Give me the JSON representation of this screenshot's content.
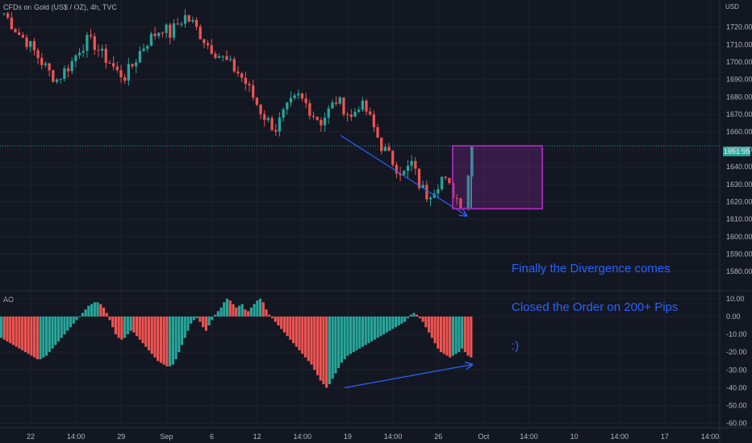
{
  "header": {
    "title": "CFDs on Gold (US$ / OZ), 4h, TVC",
    "currency": "USD"
  },
  "indicator": {
    "label": "AO"
  },
  "annotation": {
    "lines": [
      "Finally the Divergence comes",
      "Closed the Order on 200+ Pips",
      ":)"
    ]
  },
  "current_price": "1651.95",
  "colors": {
    "up": "#26a69a",
    "down": "#ef5350",
    "arrow": "#2962ff",
    "box": "#9c27b0",
    "grid": "#1e222d"
  },
  "chart_data": [
    {
      "type": "candlestick",
      "title": "CFDs on Gold (US$ / OZ), 4h, TVC",
      "ylabel": "USD",
      "ylim": [
        1575,
        1730
      ],
      "y_ticks": [
        "1720.00",
        "1710.00",
        "1700.00",
        "1690.00",
        "1680.00",
        "1670.00",
        "1660.00",
        "1650.00",
        "1640.00",
        "1630.00",
        "1620.00",
        "1610.00",
        "1600.00",
        "1590.00",
        "1580.00"
      ],
      "x_ticks": [
        "22",
        "14:00",
        "29",
        "Sep",
        "6",
        "12",
        "14:00",
        "19",
        "14:00",
        "26",
        "Oct",
        "14:00",
        "10",
        "14:00",
        "17",
        "14:00"
      ],
      "last": 1651.95,
      "series_close_path": [
        1728,
        1722,
        1716,
        1712,
        1706,
        1700,
        1694,
        1690,
        1695,
        1700,
        1708,
        1712,
        1710,
        1704,
        1700,
        1694,
        1692,
        1698,
        1706,
        1712,
        1716,
        1720,
        1716,
        1722,
        1726,
        1722,
        1716,
        1710,
        1706,
        1702,
        1698,
        1694,
        1688,
        1680,
        1672,
        1666,
        1662,
        1670,
        1676,
        1680,
        1676,
        1670,
        1666,
        1672,
        1678,
        1674,
        1668,
        1676,
        1672,
        1662,
        1652,
        1646,
        1640,
        1636,
        1642,
        1630,
        1624,
        1628,
        1634,
        1628,
        1622,
        1618,
        1651.95
      ],
      "divergence_arrow": {
        "from": 1658,
        "to": 1612
      },
      "trade_box": {
        "top": 1652,
        "bottom": 1616
      }
    },
    {
      "type": "bar",
      "title": "AO",
      "ylim": [
        -62,
        14
      ],
      "y_ticks": [
        "10.00",
        "0.00",
        "-10.00",
        "-20.00",
        "-30.00",
        "-40.00",
        "-50.00",
        "-60.00"
      ],
      "values": [
        -12,
        -13,
        -14,
        -15,
        -16,
        -17,
        -18,
        -19,
        -20,
        -21,
        -22,
        -23,
        -24,
        -24,
        -23,
        -22,
        -20,
        -18,
        -16,
        -14,
        -12,
        -10,
        -8,
        -6,
        -4,
        -2,
        0,
        2,
        4,
        6,
        7,
        8,
        8,
        7,
        5,
        2,
        -2,
        -6,
        -10,
        -12,
        -13,
        -12,
        -10,
        -8,
        -9,
        -11,
        -13,
        -15,
        -17,
        -19,
        -21,
        -23,
        -25,
        -26,
        -27,
        -28,
        -28,
        -27,
        -24,
        -20,
        -16,
        -12,
        -8,
        -4,
        -2,
        -1,
        -3,
        -6,
        -8,
        -5,
        -2,
        1,
        3,
        5,
        8,
        10,
        9,
        7,
        5,
        6,
        7,
        4,
        3,
        5,
        7,
        9,
        10,
        8,
        4,
        1,
        -1,
        -3,
        -5,
        -7,
        -9,
        -11,
        -13,
        -15,
        -17,
        -19,
        -21,
        -23,
        -25,
        -27,
        -30,
        -33,
        -36,
        -38,
        -40,
        -38,
        -35,
        -32,
        -29,
        -26,
        -24,
        -22,
        -21,
        -20,
        -19,
        -18,
        -17,
        -16,
        -15,
        -14,
        -13,
        -12,
        -11,
        -10,
        -9,
        -8,
        -7,
        -6,
        -5,
        -4,
        -3,
        -1,
        1,
        2,
        1,
        -1,
        -3,
        -6,
        -9,
        -12,
        -15,
        -18,
        -20,
        -21,
        -22,
        -23,
        -22,
        -21,
        -20,
        -18,
        -20,
        -22,
        -23
      ],
      "divergence_arrow": {
        "from": -40,
        "to": -27
      }
    }
  ]
}
